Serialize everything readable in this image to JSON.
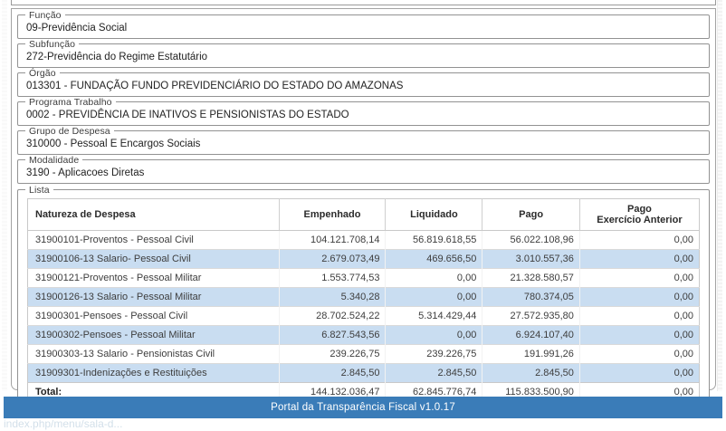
{
  "filters": [
    {
      "label": "Função",
      "value": "09-Previdência Social"
    },
    {
      "label": "Subfunção",
      "value": "272-Previdência do Regime Estatutário"
    },
    {
      "label": "Órgão",
      "value": "013301 - FUNDAÇÃO FUNDO PREVIDENCIÁRIO DO ESTADO DO AMAZONAS"
    },
    {
      "label": "Programa Trabalho",
      "value": "0002 - PREVIDÊNCIA DE INATIVOS E PENSIONISTAS DO ESTADO"
    },
    {
      "label": "Grupo de Despesa",
      "value": "310000 - Pessoal E Encargos Sociais"
    },
    {
      "label": "Modalidade",
      "value": "3190 - Aplicacoes Diretas"
    }
  ],
  "lista": {
    "label": "Lista",
    "headers": {
      "natureza": "Natureza de Despesa",
      "empenhado": "Empenhado",
      "liquidado": "Liquidado",
      "pago": "Pago",
      "pago_anterior": "Pago\nExercício Anterior"
    },
    "rows": [
      {
        "natureza": "31900101-Proventos - Pessoal Civil",
        "empenhado": "104.121.708,14",
        "liquidado": "56.819.618,55",
        "pago": "56.022.108,96",
        "pago_anterior": "0,00"
      },
      {
        "natureza": "31900106-13 Salario- Pessoal Civil",
        "empenhado": "2.679.073,49",
        "liquidado": "469.656,50",
        "pago": "3.010.557,36",
        "pago_anterior": "0,00"
      },
      {
        "natureza": "31900121-Proventos - Pessoal Militar",
        "empenhado": "1.553.774,53",
        "liquidado": "0,00",
        "pago": "21.328.580,57",
        "pago_anterior": "0,00"
      },
      {
        "natureza": "31900126-13 Salario - Pessoal Militar",
        "empenhado": "5.340,28",
        "liquidado": "0,00",
        "pago": "780.374,05",
        "pago_anterior": "0,00"
      },
      {
        "natureza": "31900301-Pensoes - Pessoal Civil",
        "empenhado": "28.702.524,22",
        "liquidado": "5.314.429,44",
        "pago": "27.572.935,80",
        "pago_anterior": "0,00"
      },
      {
        "natureza": "31900302-Pensoes - Pessoal Militar",
        "empenhado": "6.827.543,56",
        "liquidado": "0,00",
        "pago": "6.924.107,40",
        "pago_anterior": "0,00"
      },
      {
        "natureza": "31900303-13 Salario - Pensionistas Civil",
        "empenhado": "239.226,75",
        "liquidado": "239.226,75",
        "pago": "191.991,26",
        "pago_anterior": "0,00"
      },
      {
        "natureza": "31909301-Indenizações e Restituições",
        "empenhado": "2.845,50",
        "liquidado": "2.845,50",
        "pago": "2.845,50",
        "pago_anterior": "0,00"
      }
    ],
    "total": {
      "natureza": "Total:",
      "empenhado": "144.132.036,47",
      "liquidado": "62.845.776,74",
      "pago": "115.833.500,90",
      "pago_anterior": "0,00"
    }
  },
  "footer": {
    "version_text": "Portal da Transparência Fiscal v1.0.17"
  },
  "status": {
    "url_hint": "index.php/menu/sala-d..."
  },
  "colors": {
    "accent": "#3a7cb8",
    "row_stripe": "#c9ddf1"
  }
}
